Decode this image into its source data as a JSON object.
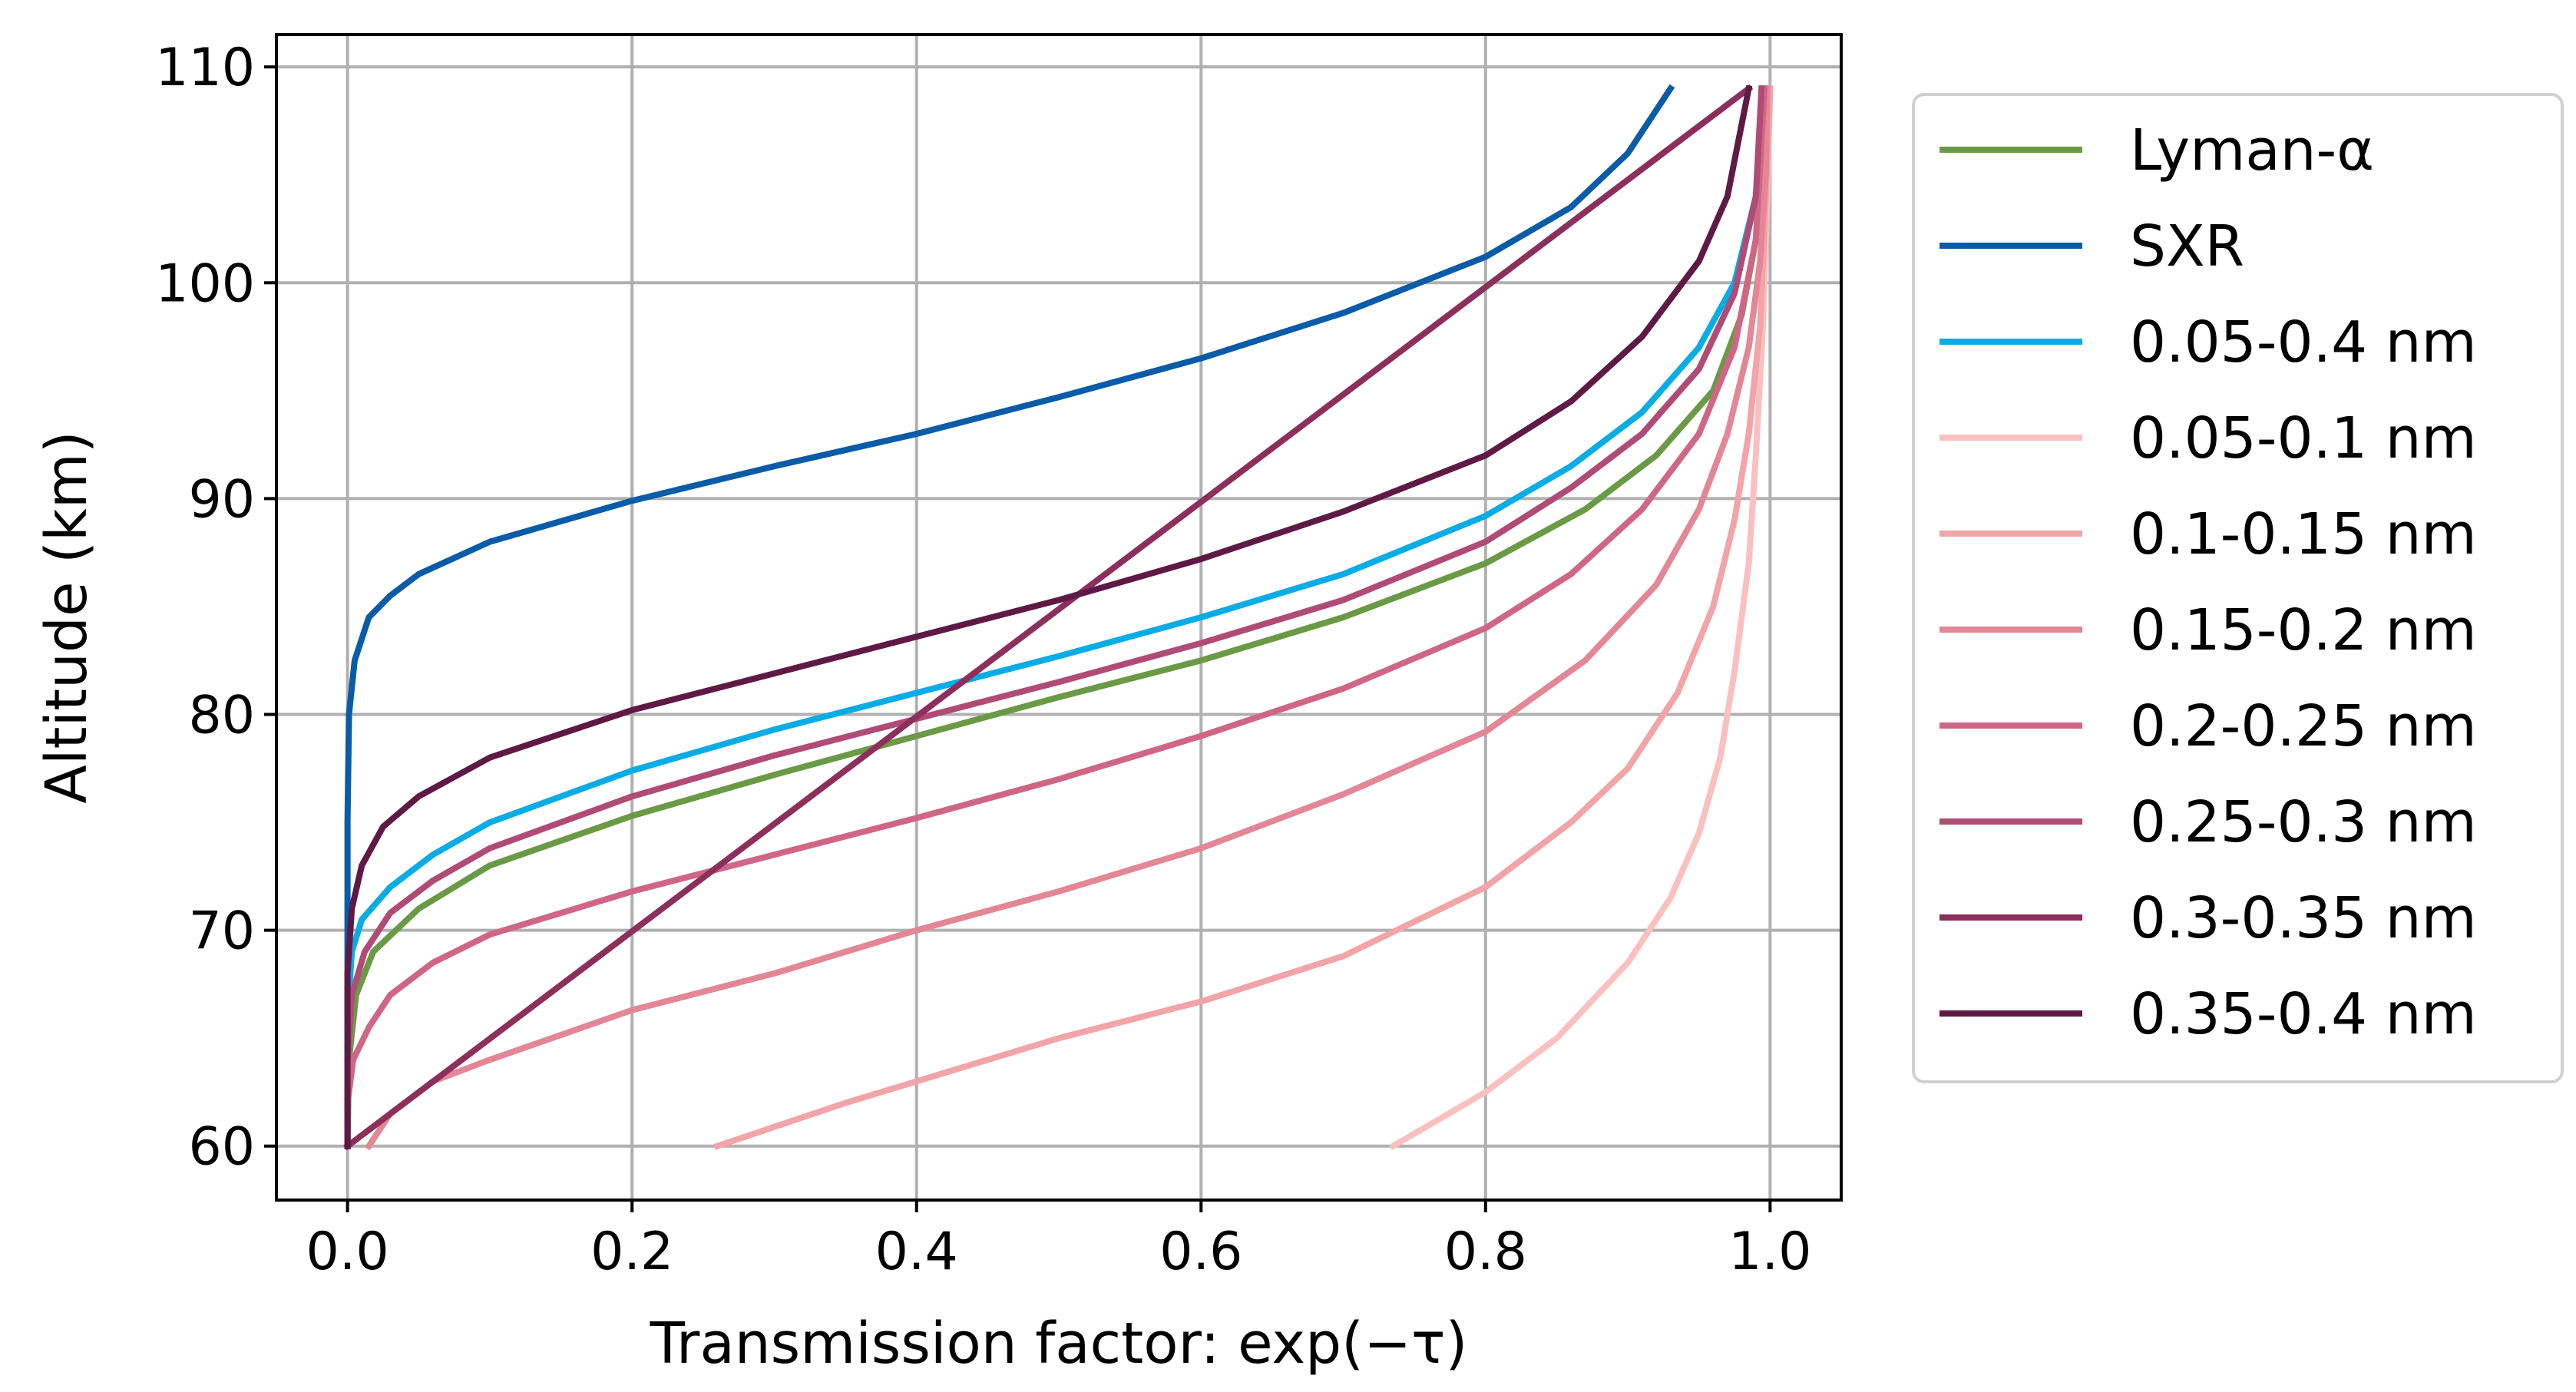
{
  "chart_data": {
    "type": "line",
    "title": "",
    "xlabel": "Transmission factor: exp(−τ)",
    "ylabel": "Altitude (km)",
    "xlim": [
      -0.05,
      1.05
    ],
    "ylim": [
      57.5,
      111.5
    ],
    "xticks": [
      0.0,
      0.2,
      0.4,
      0.6,
      0.8,
      1.0
    ],
    "xtick_labels": [
      "0.0",
      "0.2",
      "0.4",
      "0.6",
      "0.8",
      "1.0"
    ],
    "yticks": [
      60,
      70,
      80,
      90,
      100,
      110
    ],
    "ytick_labels": [
      "60",
      "70",
      "80",
      "90",
      "100",
      "110"
    ],
    "grid": true,
    "legend_position": "outside-right",
    "series": [
      {
        "name": "Lyman-α",
        "color": "#6a9a45",
        "points": [
          [
            0.0,
            60
          ],
          [
            0.001,
            64
          ],
          [
            0.006,
            67
          ],
          [
            0.018,
            69
          ],
          [
            0.05,
            71
          ],
          [
            0.1,
            73
          ],
          [
            0.2,
            75.3
          ],
          [
            0.3,
            77.2
          ],
          [
            0.4,
            79
          ],
          [
            0.5,
            80.8
          ],
          [
            0.6,
            82.5
          ],
          [
            0.7,
            84.5
          ],
          [
            0.8,
            87
          ],
          [
            0.87,
            89.5
          ],
          [
            0.92,
            92
          ],
          [
            0.96,
            95
          ],
          [
            0.98,
            98.5
          ],
          [
            0.99,
            102
          ],
          [
            0.995,
            105
          ],
          [
            0.997,
            109
          ]
        ]
      },
      {
        "name": "SXR",
        "color": "#0a5ba8",
        "points": [
          [
            0.0,
            60
          ],
          [
            0.0,
            75
          ],
          [
            0.001,
            80
          ],
          [
            0.005,
            82.5
          ],
          [
            0.015,
            84.5
          ],
          [
            0.03,
            85.5
          ],
          [
            0.05,
            86.5
          ],
          [
            0.1,
            88
          ],
          [
            0.2,
            89.9
          ],
          [
            0.3,
            91.5
          ],
          [
            0.4,
            93
          ],
          [
            0.5,
            94.7
          ],
          [
            0.6,
            96.5
          ],
          [
            0.7,
            98.6
          ],
          [
            0.8,
            101.2
          ],
          [
            0.86,
            103.5
          ],
          [
            0.9,
            106
          ],
          [
            0.93,
            109
          ]
        ]
      },
      {
        "name": "0.05-0.4 nm",
        "color": "#0aace6",
        "points": [
          [
            0.0,
            60
          ],
          [
            0.0,
            66
          ],
          [
            0.003,
            69
          ],
          [
            0.01,
            70.5
          ],
          [
            0.03,
            72
          ],
          [
            0.06,
            73.5
          ],
          [
            0.1,
            75
          ],
          [
            0.2,
            77.4
          ],
          [
            0.3,
            79.3
          ],
          [
            0.4,
            81
          ],
          [
            0.5,
            82.7
          ],
          [
            0.6,
            84.5
          ],
          [
            0.7,
            86.5
          ],
          [
            0.8,
            89.2
          ],
          [
            0.86,
            91.5
          ],
          [
            0.91,
            94
          ],
          [
            0.95,
            97
          ],
          [
            0.975,
            100
          ],
          [
            0.99,
            104
          ],
          [
            0.995,
            109
          ]
        ]
      },
      {
        "name": "0.05-0.1 nm",
        "color": "#fac0c0",
        "points": [
          [
            0.735,
            60
          ],
          [
            0.8,
            62.5
          ],
          [
            0.85,
            65
          ],
          [
            0.9,
            68.5
          ],
          [
            0.93,
            71.5
          ],
          [
            0.95,
            74.5
          ],
          [
            0.965,
            78
          ],
          [
            0.975,
            82
          ],
          [
            0.985,
            87
          ],
          [
            0.99,
            92
          ],
          [
            0.995,
            98
          ],
          [
            0.998,
            104
          ],
          [
            1.0,
            109
          ]
        ]
      },
      {
        "name": "0.1-0.15 nm",
        "color": "#f2a4a8",
        "points": [
          [
            0.26,
            60
          ],
          [
            0.35,
            62
          ],
          [
            0.5,
            65
          ],
          [
            0.6,
            66.7
          ],
          [
            0.7,
            68.8
          ],
          [
            0.8,
            72
          ],
          [
            0.86,
            75
          ],
          [
            0.9,
            77.5
          ],
          [
            0.935,
            81
          ],
          [
            0.96,
            85
          ],
          [
            0.975,
            89
          ],
          [
            0.985,
            93
          ],
          [
            0.993,
            98
          ],
          [
            0.997,
            104
          ],
          [
            1.0,
            109
          ]
        ]
      },
      {
        "name": "0.15-0.2 nm",
        "color": "#e38796",
        "points": [
          [
            0.015,
            60
          ],
          [
            0.03,
            61.5
          ],
          [
            0.06,
            63
          ],
          [
            0.1,
            64
          ],
          [
            0.2,
            66.3
          ],
          [
            0.3,
            68
          ],
          [
            0.4,
            70
          ],
          [
            0.5,
            71.8
          ],
          [
            0.6,
            73.8
          ],
          [
            0.7,
            76.3
          ],
          [
            0.8,
            79.2
          ],
          [
            0.87,
            82.5
          ],
          [
            0.92,
            86
          ],
          [
            0.95,
            89.5
          ],
          [
            0.97,
            93
          ],
          [
            0.985,
            97
          ],
          [
            0.993,
            101
          ],
          [
            0.997,
            105
          ],
          [
            0.998,
            109
          ]
        ]
      },
      {
        "name": "0.2-0.25 nm",
        "color": "#d06685",
        "points": [
          [
            0.0,
            60
          ],
          [
            0.0,
            62
          ],
          [
            0.004,
            64
          ],
          [
            0.015,
            65.5
          ],
          [
            0.03,
            67
          ],
          [
            0.06,
            68.5
          ],
          [
            0.1,
            69.8
          ],
          [
            0.2,
            71.8
          ],
          [
            0.3,
            73.5
          ],
          [
            0.4,
            75.2
          ],
          [
            0.5,
            77
          ],
          [
            0.6,
            79
          ],
          [
            0.7,
            81.2
          ],
          [
            0.8,
            84
          ],
          [
            0.86,
            86.5
          ],
          [
            0.91,
            89.5
          ],
          [
            0.95,
            93
          ],
          [
            0.975,
            97
          ],
          [
            0.99,
            102
          ],
          [
            0.996,
            109
          ]
        ]
      },
      {
        "name": "0.25-0.3 nm",
        "color": "#b04b75",
        "points": [
          [
            0.0,
            60
          ],
          [
            0.0,
            64
          ],
          [
            0.003,
            67
          ],
          [
            0.012,
            69
          ],
          [
            0.03,
            70.8
          ],
          [
            0.06,
            72.3
          ],
          [
            0.1,
            73.8
          ],
          [
            0.2,
            76.2
          ],
          [
            0.3,
            78.1
          ],
          [
            0.4,
            79.8
          ],
          [
            0.5,
            81.5
          ],
          [
            0.6,
            83.3
          ],
          [
            0.7,
            85.3
          ],
          [
            0.8,
            88
          ],
          [
            0.86,
            90.5
          ],
          [
            0.91,
            93
          ],
          [
            0.95,
            96
          ],
          [
            0.975,
            99.5
          ],
          [
            0.99,
            104
          ],
          [
            0.994,
            109
          ]
        ]
      },
      {
        "name": "0.3-0.35 nm",
        "color": "#8c2f5d",
        "points": [
          [
            0.0,
            60
          ],
          [
            0.985,
            109
          ]
        ]
      },
      {
        "name": "0.35-0.4 nm",
        "color": "#5e1a45",
        "points": [
          [
            0.0,
            60
          ],
          [
            0.0,
            68
          ],
          [
            0.003,
            71
          ],
          [
            0.01,
            73
          ],
          [
            0.025,
            74.8
          ],
          [
            0.05,
            76.2
          ],
          [
            0.1,
            78
          ],
          [
            0.2,
            80.2
          ],
          [
            0.3,
            81.9
          ],
          [
            0.4,
            83.6
          ],
          [
            0.5,
            85.3
          ],
          [
            0.6,
            87.2
          ],
          [
            0.7,
            89.4
          ],
          [
            0.8,
            92
          ],
          [
            0.86,
            94.5
          ],
          [
            0.91,
            97.5
          ],
          [
            0.95,
            101
          ],
          [
            0.97,
            104
          ],
          [
            0.985,
            109
          ]
        ]
      }
    ]
  }
}
